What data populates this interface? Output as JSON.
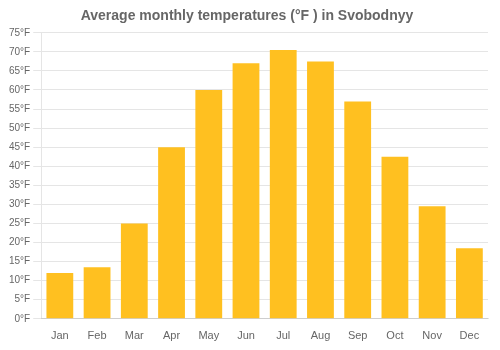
{
  "chart_data": {
    "type": "bar",
    "title": "Average monthly temperatures (°F ) in Svobodnyy",
    "categories": [
      "Jan",
      "Feb",
      "Mar",
      "Apr",
      "May",
      "Jun",
      "Jul",
      "Aug",
      "Sep",
      "Oct",
      "Nov",
      "Dec"
    ],
    "values": [
      12,
      13.5,
      25,
      45,
      60,
      67,
      70.5,
      67.5,
      57,
      42.5,
      29.5,
      18.5
    ],
    "color": "#FFC020",
    "ylim": [
      0,
      75
    ],
    "yticks": [
      {
        "value": 0,
        "label": "0°F"
      },
      {
        "value": 5,
        "label": "5°F"
      },
      {
        "value": 10,
        "label": "10°F"
      },
      {
        "value": 15,
        "label": "15°F"
      },
      {
        "value": 20,
        "label": "20°F"
      },
      {
        "value": 25,
        "label": "25°F"
      },
      {
        "value": 30,
        "label": "30°F"
      },
      {
        "value": 35,
        "label": "35°F"
      },
      {
        "value": 40,
        "label": "40°F"
      },
      {
        "value": 45,
        "label": "45°F"
      },
      {
        "value": 50,
        "label": "50°F"
      },
      {
        "value": 55,
        "label": "55°F"
      },
      {
        "value": 60,
        "label": "60°F"
      },
      {
        "value": 65,
        "label": "65°F"
      },
      {
        "value": 70,
        "label": "70°F"
      },
      {
        "value": 75,
        "label": "75°F"
      }
    ],
    "grid": true
  }
}
